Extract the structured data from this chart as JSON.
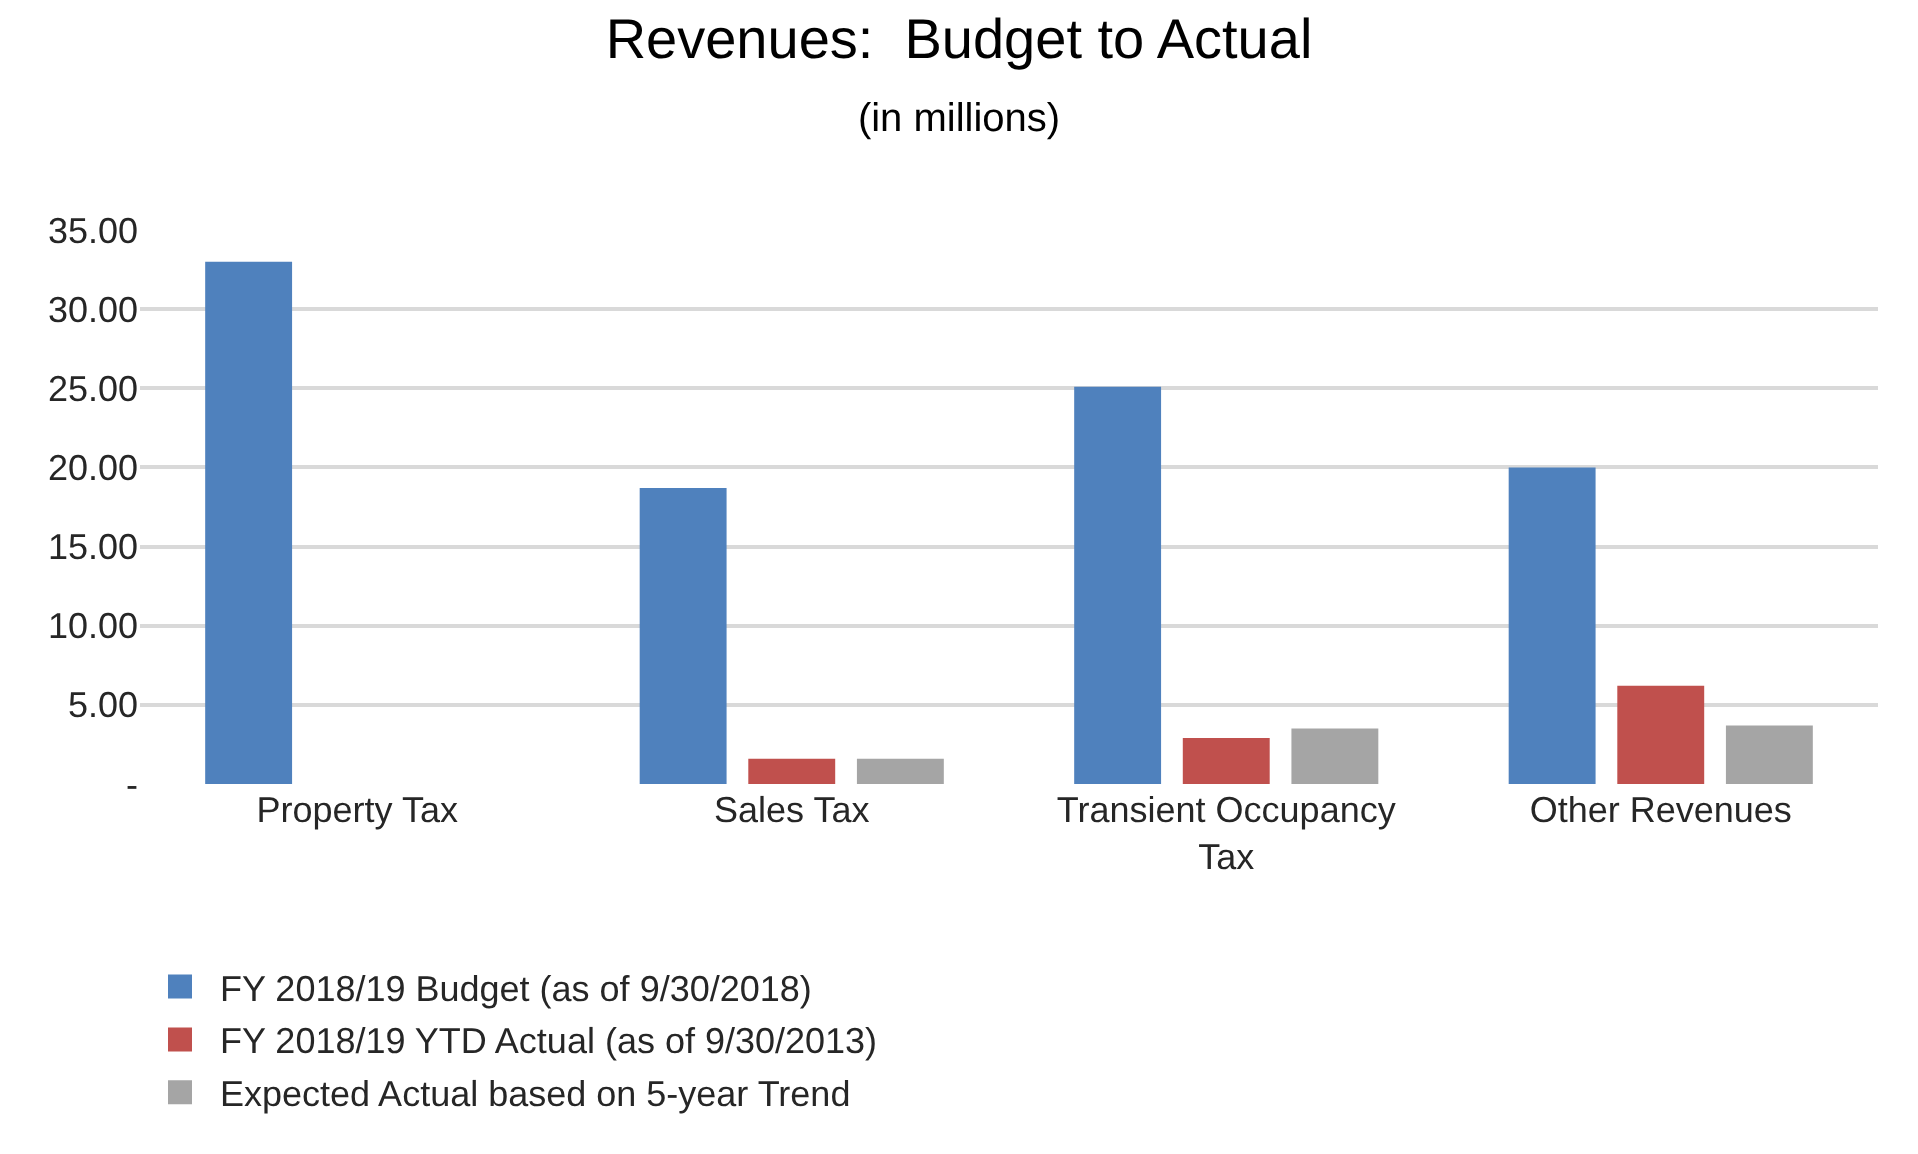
{
  "chart_data": {
    "type": "bar",
    "title": "Revenues:  Budget to Actual",
    "subtitle": "(in millions)",
    "categories": [
      "Property Tax",
      "Sales Tax",
      "Transient Occupancy Tax",
      "Other Revenues"
    ],
    "series": [
      {
        "name": "FY 2018/19 Budget (as of 9/30/2018)",
        "color": "#4f81bd",
        "values": [
          33.0,
          18.7,
          25.1,
          20.0
        ]
      },
      {
        "name": "FY 2018/19 YTD Actual (as of 9/30/2013)",
        "color": "#c0504d",
        "values": [
          null,
          1.6,
          2.9,
          6.2
        ]
      },
      {
        "name": "Expected Actual based on 5-year Trend",
        "color": "#a5a5a5",
        "values": [
          null,
          1.6,
          3.5,
          3.7
        ]
      }
    ],
    "ylim": [
      0,
      35
    ],
    "yticks": [
      {
        "value": 0,
        "label": "-"
      },
      {
        "value": 5,
        "label": "5.00"
      },
      {
        "value": 10,
        "label": "10.00"
      },
      {
        "value": 15,
        "label": "15.00"
      },
      {
        "value": 20,
        "label": "20.00"
      },
      {
        "value": 25,
        "label": "25.00"
      },
      {
        "value": 30,
        "label": "30.00"
      },
      {
        "value": 35,
        "label": "35.00"
      }
    ],
    "grid": "y",
    "legend": "bottom"
  }
}
